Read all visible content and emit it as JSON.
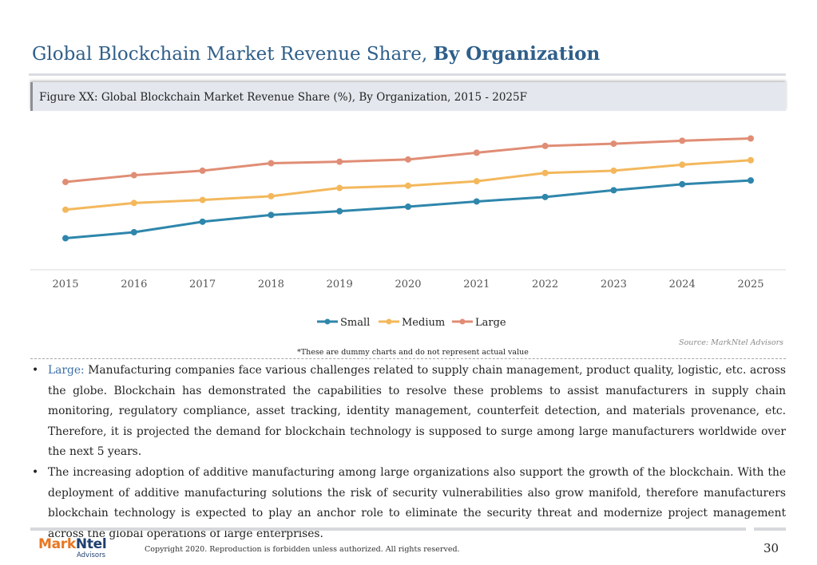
{
  "header": {
    "title_regular": "Global Blockchain Market Revenue Share,",
    "title_bold": "By Organization"
  },
  "figure": {
    "caption": "Figure XX: Global Blockchain Market Revenue Share (%), By Organization, 2015 - 2025F",
    "source": "Source: MarkNtel Advisors",
    "note": "*These are dummy charts and do not represent actual value"
  },
  "chart_data": {
    "type": "line",
    "title": "",
    "xlabel": "",
    "ylabel": "",
    "x": [
      "2015",
      "2016",
      "2017",
      "2018",
      "2019",
      "2020",
      "2021",
      "2022",
      "2023",
      "2024",
      "2025"
    ],
    "ylim": [
      0,
      100
    ],
    "grid": false,
    "legend": "bottom",
    "series": [
      {
        "name": "Small",
        "color": "#2e86ab",
        "values": [
          21,
          25,
          32,
          36.5,
          39,
          42,
          45.5,
          48.5,
          53,
          57,
          59.5
        ]
      },
      {
        "name": "Medium",
        "color": "#f3b85c",
        "values": [
          40,
          44.5,
          46.5,
          49,
          54.5,
          56,
          59,
          64.5,
          66,
          70,
          73
        ]
      },
      {
        "name": "Large",
        "color": "#e08d75",
        "values": [
          58.5,
          63,
          66,
          71,
          72,
          73.5,
          78,
          82.5,
          84,
          86,
          87.5
        ]
      }
    ]
  },
  "bullets": [
    {
      "lead": "Large:",
      "text": " Manufacturing companies face various challenges related to supply chain management, product quality, logistic, etc. across the globe. Blockchain has demonstrated the capabilities to resolve these problems to assist manufacturers in supply chain monitoring, regulatory compliance, asset tracking, identity management, counterfeit detection, and materials provenance, etc. Therefore, it is projected the demand for blockchain technology is supposed to surge among large manufacturers worldwide over the next 5 years."
    },
    {
      "lead": "",
      "text": "The increasing adoption of additive manufacturing among large organizations also support the growth of the blockchain. With the deployment of additive manufacturing solutions the risk of security vulnerabilities also grow manifold, therefore manufacturers blockchain technology is expected to play an anchor role to eliminate the security threat and modernize project management across the global operations of large enterprises."
    }
  ],
  "footer": {
    "logo_part1": "Mark",
    "logo_part2": "Ntel",
    "logo_sub": "Advisors",
    "copyright": "Copyright 2020. Reproduction is forbidden unless authorized. All rights reserved.",
    "page_number": "30"
  }
}
